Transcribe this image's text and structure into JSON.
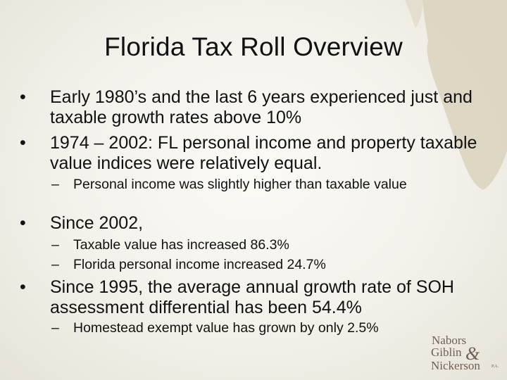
{
  "slide": {
    "title": "Florida Tax Roll Overview",
    "bullet_char": "•",
    "dash_char": "–",
    "items": [
      {
        "text": "Early 1980’s and the last 6 years experienced just and taxable growth rates above 10%"
      },
      {
        "text": "1974 – 2002: FL personal income and property taxable value indices were relatively equal."
      },
      {
        "text": "Personal income was slightly higher than taxable value"
      },
      {
        "text": "Since 2002,"
      },
      {
        "text": "Taxable value has increased 86.3%"
      },
      {
        "text": "Florida personal income increased 24.7%"
      },
      {
        "text": "Since 1995, the average annual growth rate of SOH assessment differential has been 54.4%"
      },
      {
        "text": "Homestead exempt value has grown by only 2.5%"
      }
    ]
  },
  "logo": {
    "word1": "Nabors",
    "word2": "Giblin",
    "ampersand": "&",
    "word3": "Nickerson",
    "suffix": "P.A."
  },
  "colors": {
    "background": "#f3f1ea",
    "map_fill": "#d9d2bd",
    "text": "#111111",
    "logo": "#6f5f54"
  }
}
